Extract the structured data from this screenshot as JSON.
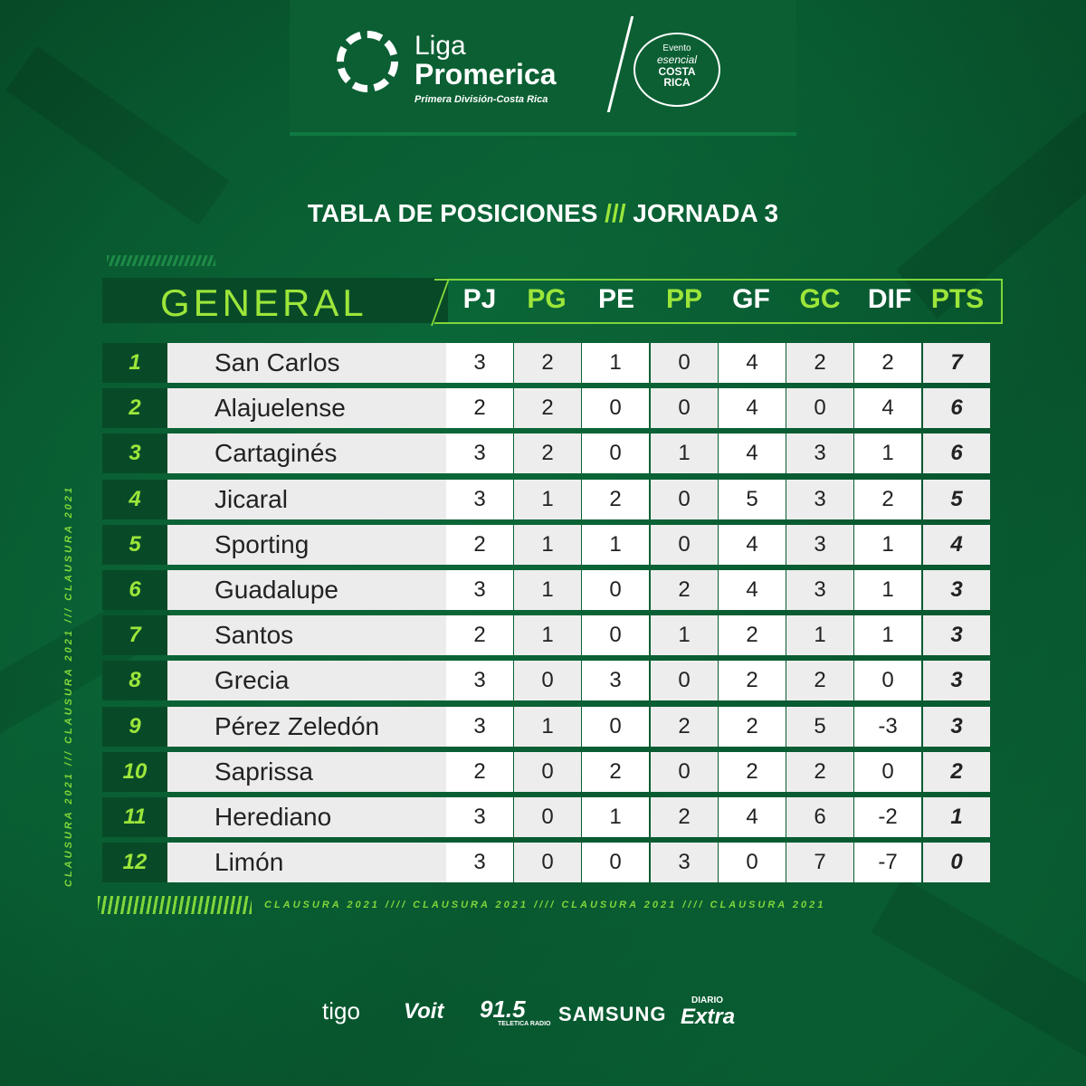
{
  "header": {
    "brand_line1": "Liga",
    "brand_line2": "Promerica",
    "brand_sub": "Primera División-Costa Rica",
    "badge_line1": "Evento",
    "badge_line2": "esencial",
    "badge_line3": "COSTA",
    "badge_line4": "RICA"
  },
  "title": {
    "left": "TABLA DE POSICIONES",
    "sep": "///",
    "right": "JORNADA 3"
  },
  "table": {
    "section_label": "GENERAL",
    "columns": [
      "PJ",
      "PG",
      "PE",
      "PP",
      "GF",
      "GC",
      "DIF",
      "PTS"
    ],
    "rows": [
      {
        "rank": "1",
        "team": "San Carlos",
        "stats": [
          "3",
          "2",
          "1",
          "0",
          "4",
          "2",
          "2",
          "7"
        ]
      },
      {
        "rank": "2",
        "team": "Alajuelense",
        "stats": [
          "2",
          "2",
          "0",
          "0",
          "4",
          "0",
          "4",
          "6"
        ]
      },
      {
        "rank": "3",
        "team": "Cartaginés",
        "stats": [
          "3",
          "2",
          "0",
          "1",
          "4",
          "3",
          "1",
          "6"
        ]
      },
      {
        "rank": "4",
        "team": "Jicaral",
        "stats": [
          "3",
          "1",
          "2",
          "0",
          "5",
          "3",
          "2",
          "5"
        ]
      },
      {
        "rank": "5",
        "team": "Sporting",
        "stats": [
          "2",
          "1",
          "1",
          "0",
          "4",
          "3",
          "1",
          "4"
        ]
      },
      {
        "rank": "6",
        "team": "Guadalupe",
        "stats": [
          "3",
          "1",
          "0",
          "2",
          "4",
          "3",
          "1",
          "3"
        ]
      },
      {
        "rank": "7",
        "team": "Santos",
        "stats": [
          "2",
          "1",
          "0",
          "1",
          "2",
          "1",
          "1",
          "3"
        ]
      },
      {
        "rank": "8",
        "team": "Grecia",
        "stats": [
          "3",
          "0",
          "3",
          "0",
          "2",
          "2",
          "0",
          "3"
        ]
      },
      {
        "rank": "9",
        "team": "Pérez Zeledón",
        "stats": [
          "3",
          "1",
          "0",
          "2",
          "2",
          "5",
          "-3",
          "3"
        ]
      },
      {
        "rank": "10",
        "team": "Saprissa",
        "stats": [
          "2",
          "0",
          "2",
          "0",
          "2",
          "2",
          "0",
          "2"
        ]
      },
      {
        "rank": "11",
        "team": "Herediano",
        "stats": [
          "3",
          "0",
          "1",
          "2",
          "4",
          "6",
          "-2",
          "1"
        ]
      },
      {
        "rank": "12",
        "team": "Limón",
        "stats": [
          "3",
          "0",
          "0",
          "3",
          "0",
          "7",
          "-7",
          "0"
        ]
      }
    ]
  },
  "side_text": "CLAUSURA 2021 /// CLAUSURA 2021 /// CLAUSURA 2021",
  "bottom_text": "CLAUSURA 2021 //// CLAUSURA 2021 //// CLAUSURA 2021 //// CLAUSURA 2021",
  "sponsors": {
    "tigo": "tigo",
    "voit": "Voit",
    "radio": "91.5",
    "radio_sub": "TELETICA RADIO",
    "samsung": "SAMSUNG",
    "diario": "DIARIO",
    "extra": "Extra"
  },
  "colors": {
    "background": "#0a6536",
    "accent": "#9ce63a",
    "dark_panel": "#084a28"
  }
}
